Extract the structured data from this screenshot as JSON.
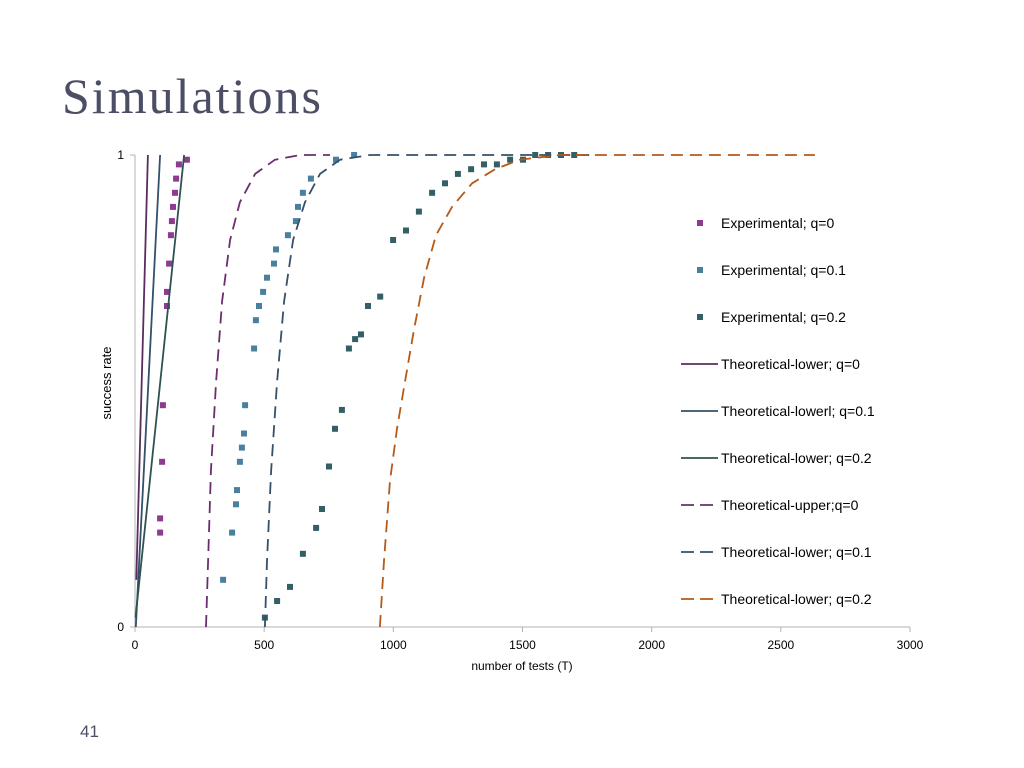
{
  "slide": {
    "title": "Simulations",
    "page_number": "41"
  },
  "colors": {
    "title": "#4b4e65",
    "axis": "#b3b3b3",
    "text": "#000000",
    "background": "#ffffff"
  },
  "chart_data": {
    "type": "scatter",
    "xlabel": "number of tests (T)",
    "ylabel": "success rate",
    "xlim": [
      0,
      3000
    ],
    "ylim": [
      0,
      1
    ],
    "xticks": [
      0,
      500,
      1000,
      1500,
      2000,
      2500,
      3000
    ],
    "yticks": [
      0,
      1
    ],
    "grid": false,
    "legend_position": "right",
    "series": [
      {
        "name": "Experimental; q=0",
        "style": "markers",
        "marker": "square",
        "color": "#8e3a8e",
        "points": [
          [
            97,
            0.2
          ],
          [
            97,
            0.23
          ],
          [
            105,
            0.35
          ],
          [
            108,
            0.47
          ],
          [
            124,
            0.68
          ],
          [
            124,
            0.71
          ],
          [
            132,
            0.77
          ],
          [
            139,
            0.83
          ],
          [
            143,
            0.86
          ],
          [
            147,
            0.89
          ],
          [
            155,
            0.92
          ],
          [
            159,
            0.95
          ],
          [
            170,
            0.98
          ],
          [
            201,
            0.99
          ]
        ]
      },
      {
        "name": "Experimental; q=0.1",
        "style": "markers",
        "marker": "square",
        "color": "#4a7fa0",
        "points": [
          [
            341,
            0.1
          ],
          [
            376,
            0.2
          ],
          [
            391,
            0.26
          ],
          [
            395,
            0.29
          ],
          [
            406,
            0.35
          ],
          [
            414,
            0.38
          ],
          [
            422,
            0.41
          ],
          [
            426,
            0.47
          ],
          [
            461,
            0.59
          ],
          [
            468,
            0.65
          ],
          [
            480,
            0.68
          ],
          [
            496,
            0.71
          ],
          [
            511,
            0.74
          ],
          [
            538,
            0.77
          ],
          [
            546,
            0.8
          ],
          [
            592,
            0.83
          ],
          [
            623,
            0.86
          ],
          [
            631,
            0.89
          ],
          [
            650,
            0.92
          ],
          [
            681,
            0.95
          ],
          [
            778,
            0.99
          ],
          [
            848,
            1.0
          ]
        ]
      },
      {
        "name": "Experimental; q=0.2",
        "style": "markers",
        "marker": "square",
        "color": "#336066",
        "points": [
          [
            503,
            0.02
          ],
          [
            550,
            0.055
          ],
          [
            600,
            0.085
          ],
          [
            650,
            0.155
          ],
          [
            701,
            0.21
          ],
          [
            724,
            0.25
          ],
          [
            751,
            0.34
          ],
          [
            774,
            0.42
          ],
          [
            801,
            0.46
          ],
          [
            828,
            0.59
          ],
          [
            852,
            0.61
          ],
          [
            875,
            0.62
          ],
          [
            902,
            0.68
          ],
          [
            949,
            0.7
          ],
          [
            999,
            0.82
          ],
          [
            1049,
            0.84
          ],
          [
            1099,
            0.88
          ],
          [
            1150,
            0.92
          ],
          [
            1200,
            0.94
          ],
          [
            1250,
            0.96
          ],
          [
            1301,
            0.97
          ],
          [
            1351,
            0.98
          ],
          [
            1401,
            0.98
          ],
          [
            1452,
            0.99
          ],
          [
            1502,
            0.99
          ],
          [
            1549,
            1.0
          ],
          [
            1599,
            1.0
          ],
          [
            1649,
            1.0
          ],
          [
            1700,
            1.0
          ]
        ]
      },
      {
        "name": "Theoretical-lower; q=0",
        "style": "line",
        "dash": "solid",
        "color": "#5a2d5e",
        "points": [
          [
            5,
            0.1
          ],
          [
            50,
            1.0
          ]
        ]
      },
      {
        "name": "Theoretical-lowerl; q=0.1",
        "style": "line",
        "dash": "solid",
        "color": "#34506a",
        "points": [
          [
            3,
            0.0
          ],
          [
            97,
            1.0
          ]
        ]
      },
      {
        "name": "Theoretical-lower; q=0.2",
        "style": "line",
        "dash": "solid",
        "color": "#2f5250",
        "points": [
          [
            2,
            0.02
          ],
          [
            190,
            1.0
          ]
        ]
      },
      {
        "name": "Theoretical-upper;q=0",
        "style": "line",
        "dash": "dashed",
        "color": "#6a2e6e",
        "points": [
          [
            275,
            0
          ],
          [
            283,
            0.14
          ],
          [
            294,
            0.33
          ],
          [
            314,
            0.52
          ],
          [
            337,
            0.69
          ],
          [
            368,
            0.82
          ],
          [
            406,
            0.9
          ],
          [
            465,
            0.96
          ],
          [
            542,
            0.99
          ],
          [
            639,
            1.0
          ],
          [
            755,
            1.0
          ]
        ]
      },
      {
        "name": "Theoretical-lower; q=0.1",
        "style": "line",
        "dash": "dashed",
        "color": "#34506a",
        "points": [
          [
            503,
            0
          ],
          [
            511,
            0.14
          ],
          [
            527,
            0.33
          ],
          [
            550,
            0.52
          ],
          [
            577,
            0.69
          ],
          [
            612,
            0.82
          ],
          [
            658,
            0.9
          ],
          [
            716,
            0.96
          ],
          [
            794,
            0.99
          ],
          [
            910,
            1.0
          ],
          [
            1761,
            1.0
          ]
        ]
      },
      {
        "name": "Theoretical-lower; q=0.2",
        "style": "line",
        "dash": "dashed",
        "color": "#b35a1a",
        "points": [
          [
            948,
            0
          ],
          [
            964,
            0.14
          ],
          [
            987,
            0.31
          ],
          [
            1014,
            0.42
          ],
          [
            1045,
            0.52
          ],
          [
            1080,
            0.63
          ],
          [
            1119,
            0.74
          ],
          [
            1165,
            0.83
          ],
          [
            1227,
            0.89
          ],
          [
            1305,
            0.94
          ],
          [
            1394,
            0.97
          ],
          [
            1490,
            0.99
          ],
          [
            1645,
            1.0
          ],
          [
            1800,
            1.0
          ],
          [
            2632,
            1.0
          ]
        ]
      }
    ]
  }
}
